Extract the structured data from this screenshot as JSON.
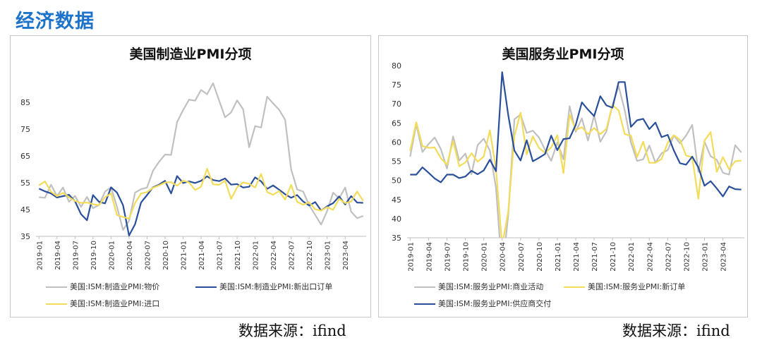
{
  "page": {
    "title": "经济数据",
    "title_color": "#1c73c9"
  },
  "sources": {
    "left": "数据来源：ifind",
    "right": "数据来源：ifind"
  },
  "chart_data": [
    {
      "type": "line",
      "title": "美国制造业PMI分项",
      "ylim": [
        35,
        95
      ],
      "yticks": [
        35,
        45,
        55,
        65,
        75,
        85
      ],
      "x_start": "2019-01",
      "n_points": 55,
      "x_tick_labels": [
        "2019-01",
        "2019-04",
        "2019-07",
        "2019-10",
        "2020-01",
        "2020-04",
        "2020-07",
        "2020-10",
        "2021-01",
        "2021-04",
        "2021-07",
        "2021-10",
        "2022-01",
        "2022-04",
        "2022-07",
        "2022-10",
        "2023-01",
        "2023-04"
      ],
      "legend_placement": "bottom",
      "grid": false,
      "series": [
        {
          "name": "美国:ISM:制造业PMI:物价",
          "color": "#c0c0c0",
          "values": [
            49.6,
            49.4,
            54.3,
            50.0,
            53.2,
            47.9,
            50.1,
            46.0,
            49.7,
            45.5,
            46.7,
            51.7,
            53.3,
            45.9,
            37.4,
            40.8,
            51.3,
            52.6,
            53.2,
            59.5,
            62.8,
            65.5,
            65.4,
            77.6,
            82.1,
            86.0,
            85.6,
            89.6,
            88.0,
            92.1,
            85.7,
            79.4,
            81.2,
            85.7,
            82.4,
            68.2,
            76.1,
            75.6,
            87.1,
            84.6,
            82.2,
            78.5,
            60.0,
            52.5,
            51.7,
            46.6,
            43.0,
            39.4,
            44.5,
            51.3,
            49.2,
            53.2,
            44.2,
            41.8,
            42.6
          ]
        },
        {
          "name": "美国:ISM:制造业PMI:新出口订单",
          "color": "#2a4f9b",
          "values": [
            52.8,
            51.8,
            51.0,
            49.5,
            50.0,
            50.5,
            48.1,
            43.3,
            41.0,
            50.4,
            47.9,
            47.3,
            53.3,
            51.3,
            46.6,
            35.3,
            39.5,
            47.6,
            50.4,
            53.3,
            54.3,
            55.7,
            51.0,
            57.5,
            54.9,
            55.5,
            54.9,
            55.7,
            57.4,
            56.0,
            55.6,
            56.6,
            54.3,
            54.5,
            53.2,
            53.5,
            57.0,
            55.5,
            52.7,
            54.0,
            52.4,
            50.7,
            49.4,
            50.4,
            48.0,
            46.5,
            47.8,
            44.6,
            46.2,
            47.4,
            49.9,
            46.9,
            50.0,
            47.6,
            47.5
          ]
        },
        {
          "name": "美国:ISM:制造业PMI:进口",
          "color": "#f3dc5a",
          "values": [
            54.0,
            55.5,
            51.6,
            50.0,
            51.2,
            49.6,
            48.2,
            47.5,
            47.6,
            47.0,
            46.6,
            49.6,
            51.0,
            42.9,
            42.2,
            41.6,
            47.4,
            51.0,
            51.5,
            53.1,
            54.0,
            55.1,
            55.2,
            53.9,
            55.8,
            55.1,
            52.3,
            53.5,
            60.2,
            54.4,
            54.2,
            55.8,
            49.0,
            53.3,
            55.1,
            54.6,
            53.2,
            58.3,
            51.5,
            50.5,
            51.9,
            48.7,
            54.2,
            47.9,
            46.8,
            47.7,
            45.1,
            44.6,
            45.9,
            44.9,
            49.0,
            47.4,
            48.0,
            51.7,
            48.3
          ]
        }
      ]
    },
    {
      "type": "line",
      "title": "美国服务业PMI分项",
      "ylim": [
        35,
        80
      ],
      "yticks": [
        35,
        40,
        45,
        50,
        55,
        60,
        65,
        70,
        75,
        80
      ],
      "x_start": "2019-01",
      "n_points": 55,
      "x_tick_labels": [
        "2019-01",
        "2019-04",
        "2019-07",
        "2019-10",
        "2020-01",
        "2020-04",
        "2020-07",
        "2020-10",
        "2021-01",
        "2021-04",
        "2021-07",
        "2021-10",
        "2022-01",
        "2022-04",
        "2022-07",
        "2022-10",
        "2023-01",
        "2023-04"
      ],
      "legend_placement": "bottom",
      "grid": false,
      "series": [
        {
          "name": "美国:ISM:服务业PMI:商业活动",
          "color": "#c0c0c0",
          "values": [
            56.2,
            64.7,
            57.4,
            59.5,
            61.2,
            58.2,
            53.1,
            61.5,
            55.2,
            57.0,
            51.6,
            59.2,
            60.9,
            57.8,
            48.0,
            26.0,
            41.0,
            66.0,
            67.2,
            62.4,
            63.0,
            61.2,
            58.0,
            55.1,
            59.9,
            55.5,
            69.4,
            62.7,
            66.2,
            60.4,
            67.0,
            60.1,
            62.8,
            69.8,
            74.6,
            68.3,
            59.9,
            55.1,
            55.5,
            59.1,
            54.6,
            57.1,
            57.9,
            61.7,
            59.7,
            61.7,
            64.5,
            52.2,
            60.1,
            56.3,
            55.4,
            52.0,
            51.5,
            59.2,
            57.3
          ]
        },
        {
          "name": "美国:ISM:服务业PMI:新订单",
          "color": "#f3dc5a",
          "values": [
            57.7,
            65.2,
            59.0,
            58.5,
            58.6,
            55.8,
            54.1,
            60.3,
            53.7,
            54.7,
            57.1,
            54.9,
            56.2,
            63.1,
            52.9,
            32.9,
            41.9,
            61.6,
            67.7,
            56.8,
            61.5,
            58.5,
            57.2,
            58.6,
            61.8,
            51.9,
            67.2,
            63.2,
            63.9,
            62.1,
            63.7,
            62.1,
            63.5,
            69.7,
            68.3,
            62.1,
            61.7,
            56.1,
            60.1,
            54.6,
            54.6,
            55.6,
            59.9,
            61.8,
            60.6,
            56.5,
            56.0,
            45.2,
            60.4,
            62.6,
            52.2,
            56.1,
            52.9,
            55.0,
            55.2
          ]
        },
        {
          "name": "美国:ISM:服务业PMI:供应商交付",
          "color": "#2a4f9b",
          "values": [
            51.5,
            51.5,
            53.4,
            52.0,
            50.5,
            49.5,
            51.5,
            51.5,
            50.6,
            51.0,
            52.5,
            51.6,
            52.6,
            55.4,
            52.4,
            78.3,
            67.0,
            57.8,
            55.2,
            60.5,
            55.0,
            55.9,
            56.9,
            61.7,
            57.9,
            60.8,
            61.0,
            64.5,
            70.4,
            68.5,
            66.8,
            72.0,
            69.6,
            69.0,
            75.7,
            75.7,
            64.0,
            65.7,
            66.1,
            63.4,
            65.1,
            61.3,
            61.9,
            57.8,
            54.5,
            54.1,
            56.2,
            53.4,
            48.6,
            49.8,
            47.9,
            45.8,
            48.4,
            47.7,
            47.6
          ]
        }
      ]
    }
  ]
}
